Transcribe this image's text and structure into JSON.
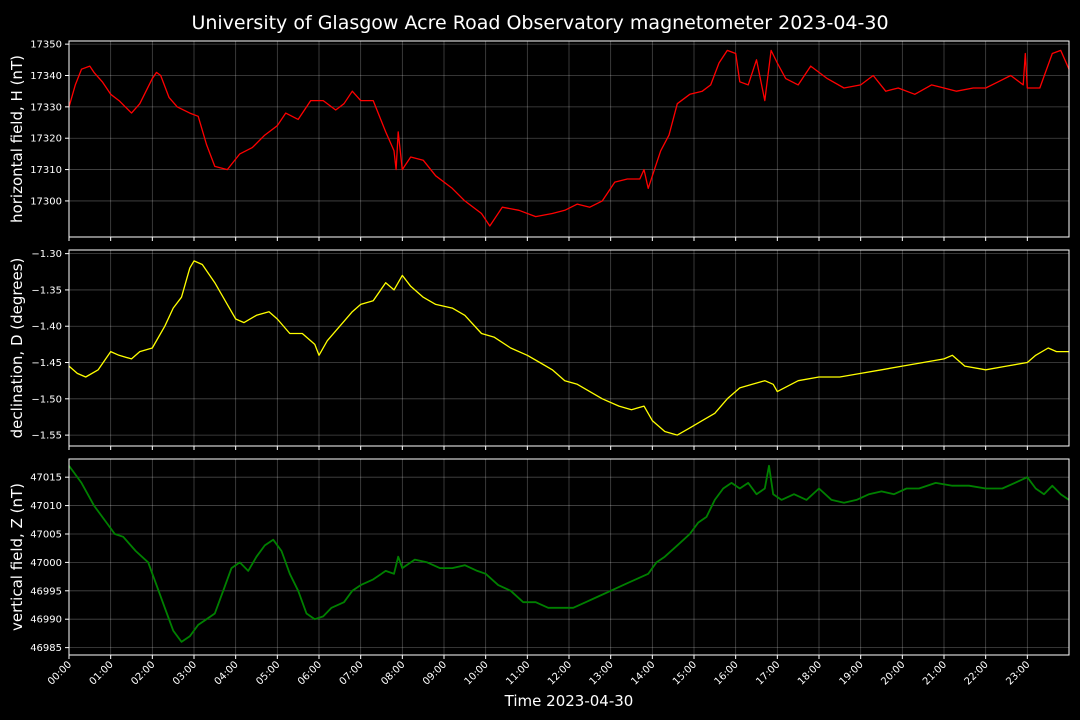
{
  "chart_data": {
    "type": "line",
    "title": "University of Glasgow Acre Road Observatory magnetometer 2023-04-30",
    "xlabel": "Time 2023-04-30",
    "x_ticks": [
      "00:00",
      "01:00",
      "02:00",
      "03:00",
      "04:00",
      "05:00",
      "06:00",
      "07:00",
      "08:00",
      "09:00",
      "10:00",
      "11:00",
      "12:00",
      "13:00",
      "14:00",
      "15:00",
      "16:00",
      "17:00",
      "18:00",
      "19:00",
      "20:00",
      "21:00",
      "22:00",
      "23:00"
    ],
    "x_range_hours": [
      0,
      24
    ],
    "grid": true,
    "background": "#000000",
    "panels": [
      {
        "ylabel": "horizontal field, H (nT)",
        "color": "#ff0000",
        "ylim": [
          17288.5,
          17351
        ],
        "y_ticks": [
          17300,
          17310,
          17320,
          17330,
          17340,
          17350
        ],
        "tick_format": "int",
        "series": {
          "x": [
            0.0,
            0.15,
            0.3,
            0.5,
            0.6,
            0.8,
            1.0,
            1.2,
            1.5,
            1.7,
            2.0,
            2.1,
            2.2,
            2.4,
            2.6,
            2.9,
            3.1,
            3.3,
            3.5,
            3.8,
            4.1,
            4.4,
            4.7,
            5.0,
            5.2,
            5.5,
            5.8,
            6.1,
            6.4,
            6.6,
            6.8,
            7.0,
            7.3,
            7.6,
            7.8,
            7.85,
            7.9,
            8.0,
            8.2,
            8.5,
            8.8,
            9.2,
            9.5,
            9.9,
            10.1,
            10.4,
            10.8,
            11.2,
            11.6,
            11.9,
            12.2,
            12.5,
            12.8,
            13.1,
            13.4,
            13.7,
            13.8,
            13.9,
            14.1,
            14.2,
            14.4,
            14.6,
            14.9,
            15.2,
            15.4,
            15.6,
            15.8,
            16.0,
            16.1,
            16.3,
            16.5,
            16.7,
            16.85,
            17.0,
            17.2,
            17.5,
            17.8,
            18.2,
            18.6,
            19.0,
            19.3,
            19.6,
            19.9,
            20.3,
            20.7,
            21.0,
            21.3,
            21.7,
            22.0,
            22.3,
            22.6,
            22.9,
            22.95,
            23.0,
            23.3,
            23.6,
            23.8,
            24.0
          ],
          "y": [
            17330,
            17337,
            17342,
            17343,
            17341,
            17338,
            17334,
            17332,
            17328,
            17331,
            17339,
            17341,
            17340,
            17333,
            17330,
            17328,
            17327,
            17318,
            17311,
            17310,
            17315,
            17317,
            17321,
            17324,
            17328,
            17326,
            17332,
            17332,
            17329,
            17331,
            17335,
            17332,
            17332,
            17322,
            17316,
            17310,
            17322,
            17310,
            17314,
            17313,
            17308,
            17304,
            17300,
            17296,
            17292,
            17298,
            17297,
            17295,
            17296,
            17297,
            17299,
            17298,
            17300,
            17306,
            17307,
            17307,
            17310,
            17304,
            17312,
            17316,
            17321,
            17331,
            17334,
            17335,
            17337,
            17344,
            17348,
            17347,
            17338,
            17337,
            17345,
            17332,
            17348,
            17344,
            17339,
            17337,
            17343,
            17339,
            17336,
            17337,
            17340,
            17335,
            17336,
            17334,
            17337,
            17336,
            17335,
            17336,
            17336,
            17338,
            17340,
            17337,
            17347,
            17336,
            17336,
            17347,
            17348,
            17342
          ]
        }
      },
      {
        "ylabel": "declination, D (degrees)",
        "color": "#ffff00",
        "ylim": [
          -1.565,
          -1.295
        ],
        "y_ticks": [
          -1.55,
          -1.5,
          -1.45,
          -1.4,
          -1.35,
          -1.3
        ],
        "tick_format": "2dp",
        "series": {
          "x": [
            0.0,
            0.2,
            0.4,
            0.7,
            1.0,
            1.2,
            1.5,
            1.7,
            2.0,
            2.3,
            2.5,
            2.7,
            2.9,
            3.0,
            3.2,
            3.5,
            3.8,
            4.0,
            4.2,
            4.5,
            4.8,
            5.0,
            5.3,
            5.6,
            5.9,
            6.0,
            6.2,
            6.5,
            6.8,
            7.0,
            7.3,
            7.6,
            7.8,
            8.0,
            8.2,
            8.5,
            8.8,
            9.2,
            9.5,
            9.9,
            10.2,
            10.6,
            11.0,
            11.3,
            11.6,
            11.9,
            12.2,
            12.5,
            12.8,
            13.2,
            13.5,
            13.8,
            14.0,
            14.3,
            14.6,
            14.9,
            15.2,
            15.5,
            15.8,
            16.1,
            16.4,
            16.7,
            16.9,
            17.0,
            17.5,
            18.0,
            18.5,
            19.0,
            19.5,
            20.0,
            20.5,
            21.0,
            21.2,
            21.5,
            22.0,
            22.5,
            23.0,
            23.2,
            23.5,
            23.7,
            24.0
          ],
          "y": [
            -1.455,
            -1.465,
            -1.47,
            -1.46,
            -1.435,
            -1.44,
            -1.445,
            -1.435,
            -1.43,
            -1.4,
            -1.375,
            -1.36,
            -1.32,
            -1.31,
            -1.315,
            -1.34,
            -1.37,
            -1.39,
            -1.395,
            -1.385,
            -1.38,
            -1.39,
            -1.41,
            -1.41,
            -1.425,
            -1.44,
            -1.42,
            -1.4,
            -1.38,
            -1.37,
            -1.365,
            -1.34,
            -1.35,
            -1.33,
            -1.345,
            -1.36,
            -1.37,
            -1.375,
            -1.385,
            -1.41,
            -1.415,
            -1.43,
            -1.44,
            -1.45,
            -1.46,
            -1.475,
            -1.48,
            -1.49,
            -1.5,
            -1.51,
            -1.515,
            -1.51,
            -1.53,
            -1.545,
            -1.55,
            -1.54,
            -1.53,
            -1.52,
            -1.5,
            -1.485,
            -1.48,
            -1.475,
            -1.48,
            -1.49,
            -1.475,
            -1.47,
            -1.47,
            -1.465,
            -1.46,
            -1.455,
            -1.45,
            -1.445,
            -1.44,
            -1.455,
            -1.46,
            -1.455,
            -1.45,
            -1.44,
            -1.43,
            -1.435,
            -1.435
          ]
        }
      },
      {
        "ylabel": "vertical field, Z (nT)",
        "color": "#008000",
        "ylim": [
          46983.7,
          47018.2
        ],
        "y_ticks": [
          46985,
          46990,
          46995,
          47000,
          47005,
          47010,
          47015
        ],
        "tick_format": "int",
        "series": {
          "x": [
            0.0,
            0.1,
            0.3,
            0.6,
            0.9,
            1.1,
            1.3,
            1.6,
            1.9,
            2.1,
            2.3,
            2.5,
            2.7,
            2.9,
            3.1,
            3.3,
            3.5,
            3.7,
            3.9,
            4.1,
            4.3,
            4.5,
            4.7,
            4.9,
            5.1,
            5.3,
            5.5,
            5.7,
            5.9,
            6.1,
            6.3,
            6.6,
            6.8,
            7.0,
            7.3,
            7.6,
            7.8,
            7.9,
            8.0,
            8.3,
            8.6,
            8.9,
            9.2,
            9.5,
            9.8,
            10.0,
            10.3,
            10.6,
            10.9,
            11.2,
            11.5,
            11.8,
            12.1,
            12.4,
            12.7,
            13.0,
            13.3,
            13.6,
            13.9,
            14.1,
            14.3,
            14.6,
            14.9,
            15.1,
            15.3,
            15.5,
            15.7,
            15.9,
            16.1,
            16.3,
            16.5,
            16.7,
            16.8,
            16.9,
            17.1,
            17.4,
            17.7,
            18.0,
            18.3,
            18.6,
            18.9,
            19.2,
            19.5,
            19.8,
            20.1,
            20.4,
            20.8,
            21.2,
            21.6,
            22.0,
            22.4,
            22.7,
            23.0,
            23.2,
            23.4,
            23.6,
            23.8,
            24.0
          ],
          "y": [
            47017,
            47016,
            47014,
            47010,
            47007,
            47005,
            47004.5,
            47002,
            47000,
            46996,
            46992,
            46988,
            46986,
            46987,
            46989,
            46990,
            46991,
            46995,
            46999,
            47000,
            46998.5,
            47001,
            47003,
            47004,
            47002,
            46998,
            46995,
            46991,
            46990,
            46990.5,
            46992,
            46993,
            46995,
            46996,
            46997,
            46998.5,
            46998,
            47001,
            46999,
            47000.5,
            47000,
            46999,
            46999,
            46999.5,
            46998.5,
            46998,
            46996,
            46995,
            46993,
            46993,
            46992,
            46992,
            46992,
            46993,
            46994,
            46995,
            46996,
            46997,
            46998,
            47000,
            47001,
            47003,
            47005,
            47007,
            47008,
            47011,
            47013,
            47014,
            47013,
            47014,
            47012,
            47013,
            47017,
            47012,
            47011,
            47012,
            47011,
            47013,
            47011,
            47010.5,
            47011,
            47012,
            47012.5,
            47012,
            47013,
            47013,
            47014,
            47013.5,
            47013.5,
            47013,
            47013,
            47014,
            47015,
            47013,
            47012,
            47013.5,
            47012,
            47011
          ]
        }
      }
    ]
  }
}
